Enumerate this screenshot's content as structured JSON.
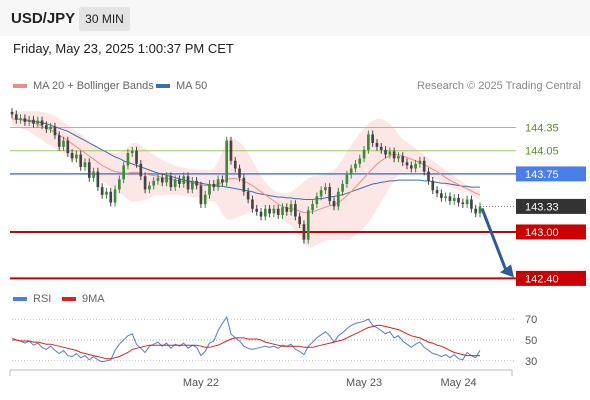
{
  "header": {
    "symbol": "USD/JPY",
    "timeframe": "30 MIN"
  },
  "timestamp": "Friday, May 23, 2025 1:00:37 PM CET",
  "legend": {
    "ma20_label": "MA 20 + Bollinger Bands",
    "ma50_label": "MA 50",
    "rsi_label": "RSI",
    "ma9_label": "9MA",
    "copyright": "Research © 2025 Trading Central"
  },
  "colors": {
    "ma20": "#f08b8b",
    "bb_fill": "#fde2e2",
    "ma50": "#3d6fa8",
    "pivot": "#cc0000",
    "resistance": "#9bc86a",
    "current_line": "#4a7ee8",
    "bull": "#3a8c3a",
    "bear": "#444444",
    "arrow": "#2e5b9a",
    "rsi": "#4e7fd6",
    "rsi_ma": "#e02020"
  },
  "chart_data": [
    {
      "type": "candlestick",
      "title": "USD/JPY",
      "ylim": [
        142.25,
        144.55
      ],
      "x_ticks": [
        "May 22",
        "May 23",
        "May 24"
      ],
      "levels": [
        {
          "value": 144.35,
          "label": "144.35",
          "kind": "resistance"
        },
        {
          "value": 144.05,
          "label": "144.05",
          "kind": "resistance"
        },
        {
          "value": 143.75,
          "label": "143.75",
          "kind": "pivot"
        },
        {
          "value": 143.33,
          "label": "143.33",
          "kind": "last"
        },
        {
          "value": 143.0,
          "label": "143.00",
          "kind": "support"
        },
        {
          "value": 142.4,
          "label": "142.40",
          "kind": "support"
        }
      ],
      "close": [
        144.52,
        144.45,
        144.47,
        144.42,
        144.45,
        144.4,
        144.44,
        144.38,
        144.33,
        144.36,
        144.25,
        144.1,
        144.18,
        144.02,
        143.95,
        144.0,
        143.84,
        143.9,
        143.7,
        143.78,
        143.58,
        143.48,
        143.52,
        143.38,
        143.55,
        143.68,
        143.86,
        144.02,
        144.05,
        143.88,
        143.72,
        143.55,
        143.6,
        143.66,
        143.7,
        143.64,
        143.72,
        143.58,
        143.68,
        143.62,
        143.72,
        143.55,
        143.66,
        143.6,
        143.36,
        143.48,
        143.62,
        143.58,
        143.68,
        143.64,
        144.18,
        143.92,
        143.82,
        143.7,
        143.52,
        143.42,
        143.3,
        143.26,
        143.2,
        143.3,
        143.24,
        143.3,
        143.22,
        143.32,
        143.26,
        143.36,
        143.2,
        143.1,
        142.9,
        143.28,
        143.36,
        143.46,
        143.54,
        143.58,
        143.4,
        143.33,
        143.52,
        143.62,
        143.74,
        143.82,
        143.88,
        143.95,
        144.06,
        144.26,
        144.15,
        144.1,
        144.06,
        144.0,
        144.04,
        143.95,
        143.98,
        143.9,
        143.86,
        143.82,
        143.88,
        143.92,
        143.78,
        143.66,
        143.54,
        143.5,
        143.44,
        143.46,
        143.4,
        143.44,
        143.38,
        143.36,
        143.42,
        143.3,
        143.24,
        143.33
      ],
      "ma20": [
        144.46,
        144.46,
        144.45,
        144.44,
        144.43,
        144.41,
        144.39,
        144.37,
        144.34,
        144.32,
        144.29,
        144.25,
        144.22,
        144.18,
        144.14,
        144.1,
        144.06,
        144.02,
        143.98,
        143.94,
        143.9,
        143.86,
        143.83,
        143.8,
        143.78,
        143.77,
        143.76,
        143.76,
        143.77,
        143.77,
        143.76,
        143.75,
        143.74,
        143.73,
        143.72,
        143.7,
        143.69,
        143.68,
        143.67,
        143.66,
        143.65,
        143.64,
        143.63,
        143.62,
        143.61,
        143.6,
        143.6,
        143.61,
        143.62,
        143.64,
        143.68,
        143.69,
        143.69,
        143.68,
        143.66,
        143.63,
        143.6,
        143.56,
        143.52,
        143.48,
        143.44,
        143.4,
        143.36,
        143.33,
        143.31,
        143.3,
        143.29,
        143.27,
        143.25,
        143.25,
        143.26,
        143.28,
        143.3,
        143.32,
        143.34,
        143.35,
        143.38,
        143.42,
        143.47,
        143.52,
        143.58,
        143.64,
        143.7,
        143.76,
        143.82,
        143.88,
        143.92,
        143.96,
        143.99,
        144.0,
        144.0,
        143.98,
        143.96,
        143.94,
        143.92,
        143.9,
        143.87,
        143.84,
        143.81,
        143.78,
        143.74,
        143.7,
        143.67,
        143.64,
        143.61,
        143.58,
        143.56,
        143.53,
        143.5,
        143.48
      ],
      "ma50": [
        144.46,
        144.46,
        144.45,
        144.45,
        144.44,
        144.43,
        144.42,
        144.41,
        144.4,
        144.38,
        144.36,
        144.34,
        144.32,
        144.3,
        144.27,
        144.24,
        144.21,
        144.18,
        144.15,
        144.12,
        144.09,
        144.06,
        144.03,
        144.0,
        143.97,
        143.95,
        143.92,
        143.9,
        143.88,
        143.86,
        143.84,
        143.82,
        143.8,
        143.78,
        143.76,
        143.75,
        143.73,
        143.72,
        143.7,
        143.69,
        143.67,
        143.66,
        143.65,
        143.64,
        143.63,
        143.62,
        143.61,
        143.6,
        143.59,
        143.59,
        143.58,
        143.57,
        143.56,
        143.55,
        143.54,
        143.53,
        143.52,
        143.5,
        143.49,
        143.48,
        143.47,
        143.46,
        143.45,
        143.45,
        143.44,
        143.44,
        143.43,
        143.43,
        143.42,
        143.42,
        143.42,
        143.43,
        143.43,
        143.44,
        143.45,
        143.46,
        143.47,
        143.48,
        143.5,
        143.52,
        143.54,
        143.56,
        143.58,
        143.6,
        143.62,
        143.63,
        143.64,
        143.65,
        143.66,
        143.66,
        143.67,
        143.67,
        143.67,
        143.67,
        143.67,
        143.67,
        143.66,
        143.66,
        143.65,
        143.64,
        143.63,
        143.63,
        143.62,
        143.61,
        143.6,
        143.59,
        143.59,
        143.58,
        143.58,
        143.58
      ],
      "bb_upper": [
        144.55,
        144.56,
        144.56,
        144.56,
        144.56,
        144.56,
        144.56,
        144.55,
        144.54,
        144.52,
        144.5,
        144.46,
        144.42,
        144.38,
        144.34,
        144.3,
        144.26,
        144.22,
        144.18,
        144.14,
        144.1,
        144.06,
        144.04,
        144.02,
        144.02,
        144.03,
        144.05,
        144.1,
        144.15,
        144.15,
        144.12,
        144.08,
        144.04,
        144.0,
        143.96,
        143.93,
        143.9,
        143.88,
        143.86,
        143.84,
        143.83,
        143.82,
        143.81,
        143.8,
        143.8,
        143.8,
        143.8,
        143.82,
        143.9,
        144.05,
        144.2,
        144.22,
        144.2,
        144.16,
        144.1,
        144.02,
        143.92,
        143.82,
        143.72,
        143.64,
        143.58,
        143.54,
        143.51,
        143.5,
        143.5,
        143.52,
        143.56,
        143.6,
        143.65,
        143.7,
        143.72,
        143.72,
        143.74,
        143.76,
        143.78,
        143.8,
        143.86,
        143.94,
        144.04,
        144.12,
        144.2,
        144.28,
        144.34,
        144.4,
        144.44,
        144.46,
        144.46,
        144.44,
        144.4,
        144.34,
        144.26,
        144.2,
        144.16,
        144.12,
        144.08,
        144.04,
        144.0,
        143.96,
        143.92,
        143.88,
        143.84,
        143.8,
        143.76,
        143.72,
        143.68,
        143.64,
        143.6,
        143.58,
        143.56,
        143.54
      ],
      "bb_lower": [
        144.37,
        144.36,
        144.34,
        144.32,
        144.3,
        144.26,
        144.22,
        144.19,
        144.14,
        144.12,
        144.08,
        144.04,
        144.02,
        143.98,
        143.94,
        143.9,
        143.86,
        143.82,
        143.78,
        143.74,
        143.7,
        143.66,
        143.62,
        143.58,
        143.54,
        143.51,
        143.47,
        143.42,
        143.39,
        143.39,
        143.4,
        143.42,
        143.44,
        143.46,
        143.48,
        143.47,
        143.48,
        143.48,
        143.48,
        143.48,
        143.47,
        143.46,
        143.45,
        143.44,
        143.42,
        143.4,
        143.4,
        143.4,
        143.34,
        143.23,
        143.16,
        143.16,
        143.18,
        143.2,
        143.22,
        143.24,
        143.28,
        143.3,
        143.32,
        143.32,
        143.3,
        143.26,
        143.21,
        143.16,
        143.12,
        143.08,
        143.02,
        142.94,
        142.85,
        142.8,
        142.8,
        142.84,
        142.86,
        142.88,
        142.9,
        142.9,
        142.9,
        142.9,
        142.9,
        142.92,
        142.96,
        143.0,
        143.06,
        143.12,
        143.2,
        143.3,
        143.38,
        143.48,
        143.58,
        143.66,
        143.74,
        143.76,
        143.76,
        143.76,
        143.76,
        143.76,
        143.74,
        143.72,
        143.7,
        143.68,
        143.64,
        143.6,
        143.58,
        143.56,
        143.54,
        143.52,
        143.52,
        143.48,
        143.44,
        143.42
      ]
    },
    {
      "type": "line",
      "title": "RSI",
      "ylim": [
        25,
        75
      ],
      "y_ticks": [
        70,
        50,
        30
      ],
      "series": [
        {
          "name": "RSI",
          "values": [
            52,
            50,
            49,
            47,
            49,
            45,
            47,
            43,
            41,
            44,
            40,
            37,
            40,
            35,
            34,
            37,
            33,
            35,
            31,
            34,
            31,
            29,
            30,
            31,
            40,
            46,
            50,
            54,
            56,
            46,
            42,
            38,
            44,
            46,
            48,
            44,
            47,
            42,
            46,
            44,
            47,
            42,
            45,
            43,
            35,
            39,
            47,
            49,
            59,
            66,
            72,
            56,
            52,
            49,
            44,
            42,
            41,
            42,
            43,
            44,
            43,
            44,
            42,
            45,
            44,
            46,
            41,
            39,
            36,
            44,
            48,
            52,
            55,
            58,
            54,
            48,
            54,
            57,
            61,
            64,
            66,
            67,
            68,
            70,
            64,
            62,
            59,
            56,
            58,
            52,
            54,
            49,
            46,
            43,
            46,
            48,
            43,
            40,
            37,
            36,
            34,
            36,
            33,
            36,
            32,
            31,
            38,
            35,
            33,
            40
          ]
        },
        {
          "name": "9MA",
          "values": [
            50,
            50,
            49,
            49,
            49,
            48,
            48,
            47,
            46,
            46,
            45,
            44,
            43,
            42,
            41,
            40,
            38,
            37,
            36,
            35,
            34,
            33,
            32,
            32,
            33,
            34,
            36,
            38,
            41,
            42,
            43,
            44,
            45,
            45,
            45,
            45,
            45,
            45,
            45,
            45,
            45,
            45,
            45,
            45,
            44,
            43,
            43,
            44,
            45,
            47,
            49,
            51,
            52,
            52,
            52,
            51,
            51,
            51,
            50,
            48,
            47,
            46,
            45,
            44,
            44,
            44,
            44,
            44,
            43,
            43,
            43,
            44,
            45,
            46,
            47,
            48,
            49,
            50,
            52,
            54,
            56,
            58,
            60,
            62,
            63,
            64,
            64,
            63,
            62,
            61,
            60,
            58,
            56,
            54,
            53,
            52,
            50,
            48,
            47,
            45,
            44,
            42,
            40,
            38,
            37,
            36,
            35,
            35,
            35,
            35
          ]
        }
      ]
    }
  ]
}
